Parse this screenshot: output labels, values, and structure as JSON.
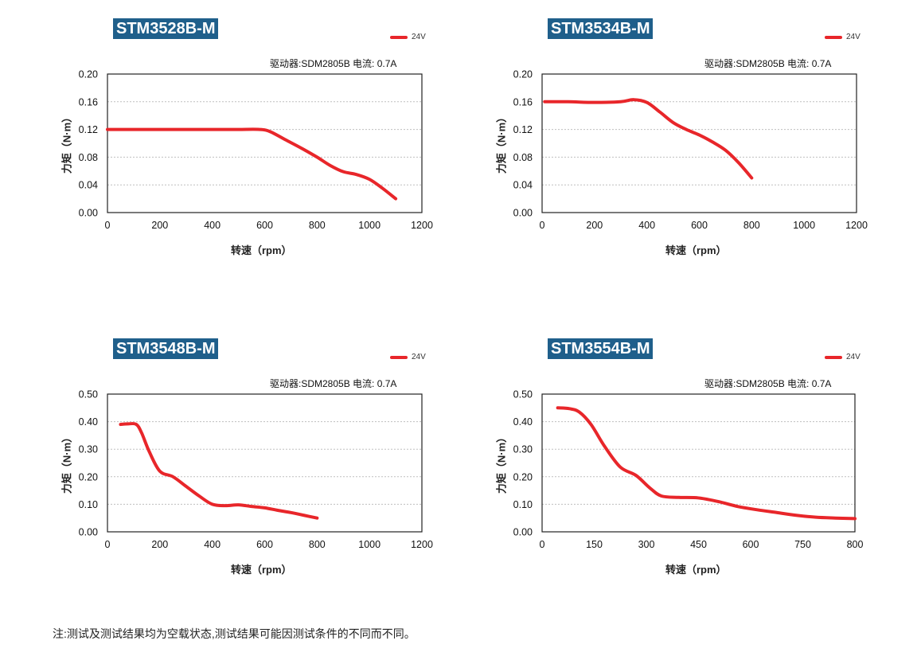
{
  "legend_label": "24V",
  "driver_text": "驱动器:SDM2805B 电流: 0.7A",
  "note": "注:测试及测试结果均为空载状态,测试结果可能因测试条件的不同而不同。",
  "colors": {
    "series": "#e8262a",
    "badge": "#1f5f8b",
    "grid": "#bfbfbf"
  },
  "chart_data": [
    {
      "type": "line",
      "title": "STM3528B-M",
      "xlabel": "转速（rpm）",
      "ylabel": "力矩（N·m）",
      "xlim": [
        0,
        1200
      ],
      "ylim": [
        0,
        0.2
      ],
      "xticks": [
        "0",
        "200",
        "400",
        "600",
        "800",
        "1000",
        "1200"
      ],
      "yticks": [
        "0.00",
        "0.04",
        "0.08",
        "0.12",
        "0.16",
        "0.20"
      ],
      "grid": "horizontal dashed",
      "legend": "top-right",
      "series": [
        {
          "name": "24V",
          "x": [
            0,
            100,
            200,
            300,
            400,
            500,
            580,
            620,
            680,
            740,
            800,
            850,
            900,
            950,
            1000,
            1050,
            1100
          ],
          "y": [
            0.12,
            0.12,
            0.12,
            0.12,
            0.12,
            0.12,
            0.12,
            0.117,
            0.105,
            0.093,
            0.08,
            0.068,
            0.059,
            0.055,
            0.048,
            0.035,
            0.02
          ]
        }
      ]
    },
    {
      "type": "line",
      "title": "STM3534B-M",
      "xlabel": "转速（rpm）",
      "ylabel": "力矩（N·m）",
      "xlim": [
        0,
        1200
      ],
      "ylim": [
        0,
        0.2
      ],
      "xticks": [
        "0",
        "200",
        "400",
        "600",
        "800",
        "1000",
        "1200"
      ],
      "yticks": [
        "0.00",
        "0.04",
        "0.08",
        "0.12",
        "0.16",
        "0.20"
      ],
      "grid": "horizontal dashed",
      "legend": "top-right",
      "series": [
        {
          "name": "24V",
          "x": [
            10,
            100,
            200,
            300,
            350,
            400,
            450,
            500,
            550,
            600,
            650,
            700,
            750,
            800
          ],
          "y": [
            0.16,
            0.16,
            0.159,
            0.16,
            0.163,
            0.159,
            0.145,
            0.13,
            0.12,
            0.112,
            0.102,
            0.09,
            0.072,
            0.05
          ]
        }
      ]
    },
    {
      "type": "line",
      "title": "STM3548B-M",
      "xlabel": "转速（rpm）",
      "ylabel": "力矩（N·m）",
      "xlim": [
        0,
        1200
      ],
      "ylim": [
        0,
        0.5
      ],
      "xticks": [
        "0",
        "200",
        "400",
        "600",
        "800",
        "1000",
        "1200"
      ],
      "yticks": [
        "0.00",
        "0.10",
        "0.20",
        "0.30",
        "0.40",
        "0.50"
      ],
      "grid": "horizontal dashed",
      "legend": "top-right",
      "series": [
        {
          "name": "24V",
          "x": [
            50,
            80,
            110,
            130,
            160,
            200,
            250,
            300,
            350,
            400,
            450,
            500,
            550,
            600,
            650,
            700,
            750,
            800
          ],
          "y": [
            0.39,
            0.392,
            0.39,
            0.36,
            0.29,
            0.22,
            0.2,
            0.165,
            0.13,
            0.1,
            0.095,
            0.098,
            0.092,
            0.087,
            0.078,
            0.07,
            0.06,
            0.05
          ]
        }
      ]
    },
    {
      "type": "line",
      "title": "STM3554B-M",
      "xlabel": "转速（rpm）",
      "ylabel": "力矩（N·m）",
      "xlim": [
        0,
        800
      ],
      "ylim": [
        0,
        0.5
      ],
      "xticks": [
        "0",
        "150",
        "300",
        "450",
        "600",
        "750",
        "800"
      ],
      "yticks": [
        "0.00",
        "0.10",
        "0.20",
        "0.30",
        "0.40",
        "0.50"
      ],
      "grid": "horizontal dashed",
      "legend": "top-right",
      "series": [
        {
          "name": "24V",
          "x": [
            40,
            70,
            95,
            125,
            160,
            200,
            240,
            275,
            305,
            350,
            400,
            450,
            500,
            550,
            600,
            650,
            700,
            750,
            800
          ],
          "y": [
            0.45,
            0.447,
            0.435,
            0.39,
            0.31,
            0.235,
            0.205,
            0.16,
            0.13,
            0.125,
            0.123,
            0.11,
            0.092,
            0.08,
            0.07,
            0.06,
            0.053,
            0.05,
            0.048
          ]
        }
      ]
    }
  ]
}
